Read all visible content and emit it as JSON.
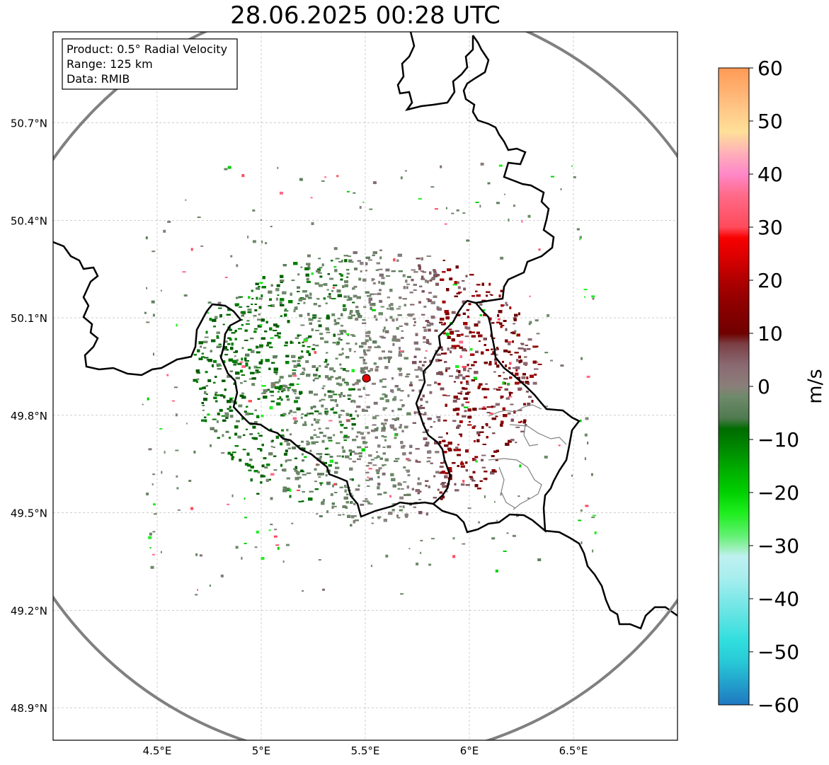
{
  "title": "28.06.2025 00:28 UTC",
  "info_box": {
    "product": "Product: 0.5° Radial Velocity",
    "range": "Range: 125 km",
    "data": "Data: RMIB"
  },
  "map": {
    "lon_range": [
      4.0,
      7.0
    ],
    "lat_range": [
      48.8,
      50.98
    ],
    "lat_ticks": [
      "50.7°N",
      "50.4°N",
      "50.1°N",
      "49.8°N",
      "49.5°N",
      "49.2°N",
      "48.9°N"
    ],
    "lat_values": [
      50.7,
      50.4,
      50.1,
      49.8,
      49.5,
      49.2,
      48.9
    ],
    "lon_ticks": [
      "4.5°E",
      "5°E",
      "5.5°E",
      "6°E",
      "6.5°E"
    ],
    "lon_values": [
      4.5,
      5.0,
      5.5,
      6.0,
      6.5
    ],
    "radar_site": {
      "lon": 5.505,
      "lat": 49.914
    },
    "range_ring_km": 125,
    "colors": {
      "border": "#000000",
      "ring": "#808080",
      "grid": "#b0b0b0",
      "site": "#e00000"
    }
  },
  "colorbar": {
    "label": "m/s",
    "min": -60,
    "max": 60,
    "ticks": [
      "60",
      "50",
      "40",
      "30",
      "20",
      "10",
      "0",
      "−10",
      "−20",
      "−30",
      "−40",
      "−50",
      "−60"
    ],
    "tick_values": [
      60,
      50,
      40,
      30,
      20,
      10,
      0,
      -10,
      -20,
      -30,
      -40,
      -50,
      -60
    ],
    "stops": [
      {
        "v": -60,
        "c": "#1f78c0"
      },
      {
        "v": -56,
        "c": "#22a0cc"
      },
      {
        "v": -52,
        "c": "#28c8d6"
      },
      {
        "v": -48,
        "c": "#30dede"
      },
      {
        "v": -44,
        "c": "#5ae2e2"
      },
      {
        "v": -40,
        "c": "#80e8e8"
      },
      {
        "v": -36,
        "c": "#a8eeee"
      },
      {
        "v": -32,
        "c": "#bff0f0"
      },
      {
        "v": -30,
        "c": "#90f0a8"
      },
      {
        "v": -28,
        "c": "#60f070"
      },
      {
        "v": -24,
        "c": "#20ee20"
      },
      {
        "v": -20,
        "c": "#00d000"
      },
      {
        "v": -16,
        "c": "#00b000"
      },
      {
        "v": -12,
        "c": "#008c00"
      },
      {
        "v": -8,
        "c": "#006c00"
      },
      {
        "v": -6,
        "c": "#4f7a4f"
      },
      {
        "v": -2,
        "c": "#6e8a6a"
      },
      {
        "v": 0,
        "c": "#8a7f7a"
      },
      {
        "v": 4,
        "c": "#8a6a72"
      },
      {
        "v": 8,
        "c": "#7a3f44"
      },
      {
        "v": 10,
        "c": "#700000"
      },
      {
        "v": 16,
        "c": "#900000"
      },
      {
        "v": 20,
        "c": "#b00000"
      },
      {
        "v": 24,
        "c": "#d80000"
      },
      {
        "v": 28,
        "c": "#f80000"
      },
      {
        "v": 30,
        "c": "#ff4a5a"
      },
      {
        "v": 36,
        "c": "#ff6a88"
      },
      {
        "v": 40,
        "c": "#ff88c8"
      },
      {
        "v": 44,
        "c": "#ffb0b8"
      },
      {
        "v": 48,
        "c": "#ffe098"
      },
      {
        "v": 52,
        "c": "#ffc888"
      },
      {
        "v": 56,
        "c": "#ffb070"
      },
      {
        "v": 60,
        "c": "#ff9a55"
      }
    ]
  }
}
